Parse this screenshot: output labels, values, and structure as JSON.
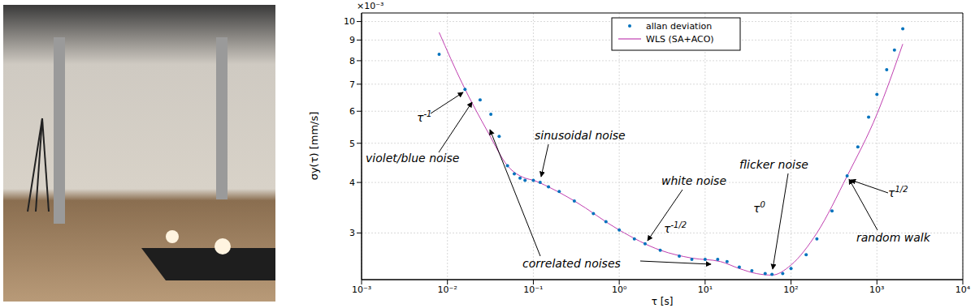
{
  "chart_data": {
    "type": "line",
    "x_label": "τ [s]",
    "y_label": "σy(τ) [mm/s]",
    "y_multiplier": "×10⁻³",
    "log": true,
    "grid": true,
    "legend": "top",
    "xlim": [
      0.001,
      10000
    ],
    "xticks": [
      {
        "value": 0.001,
        "label": "10⁻³"
      },
      {
        "value": 0.01,
        "label": "10⁻²"
      },
      {
        "value": 0.1,
        "label": "10⁻¹"
      },
      {
        "value": 1,
        "label": "10⁰"
      },
      {
        "value": 10,
        "label": "10¹"
      },
      {
        "value": 100,
        "label": "10²"
      },
      {
        "value": 1000,
        "label": "10³"
      },
      {
        "value": 10000,
        "label": "10⁴"
      }
    ],
    "ylim": [
      0.0023,
      0.0105
    ],
    "yticks": [
      {
        "value": 0.003,
        "label": "3"
      },
      {
        "value": 0.004,
        "label": "4"
      },
      {
        "value": 0.005,
        "label": "5"
      },
      {
        "value": 0.006,
        "label": "6"
      },
      {
        "value": 0.007,
        "label": "7"
      },
      {
        "value": 0.008,
        "label": "8"
      },
      {
        "value": 0.009,
        "label": "9"
      },
      {
        "value": 0.01,
        "label": "10"
      }
    ],
    "series": [
      {
        "name": "allan deviation",
        "type": "scatter",
        "marker": "circle",
        "color": "#0072bd",
        "x": [
          0.008,
          0.016,
          0.024,
          0.032,
          0.04,
          0.05,
          0.06,
          0.07,
          0.08,
          0.1,
          0.12,
          0.15,
          0.2,
          0.3,
          0.5,
          0.7,
          1,
          1.5,
          2,
          3,
          5,
          7,
          10,
          14,
          18,
          25,
          35,
          50,
          60,
          80,
          100,
          150,
          200,
          300,
          450,
          600,
          800,
          1000,
          1300,
          1600,
          2000
        ],
        "values": [
          0.0083,
          0.0068,
          0.0064,
          0.0059,
          0.0052,
          0.0044,
          0.0042,
          0.0041,
          0.00405,
          0.00405,
          0.004,
          0.0039,
          0.0038,
          0.0036,
          0.00335,
          0.0032,
          0.00305,
          0.0029,
          0.00282,
          0.00272,
          0.00263,
          0.00258,
          0.00258,
          0.00258,
          0.00255,
          0.00247,
          0.00242,
          0.00238,
          0.00237,
          0.00238,
          0.00245,
          0.00265,
          0.0029,
          0.0034,
          0.00415,
          0.0049,
          0.0058,
          0.0066,
          0.0076,
          0.0085,
          0.0096
        ]
      },
      {
        "name": "WLS (SA+ACO)",
        "type": "line",
        "line_style": "solid",
        "color": "#c03fb0",
        "x": [
          0.008,
          0.015,
          0.03,
          0.05,
          0.08,
          0.1,
          0.15,
          0.3,
          1,
          3,
          7,
          15,
          25,
          40,
          60,
          100,
          200,
          450,
          1000,
          2000
        ],
        "values": [
          0.0094,
          0.007,
          0.0053,
          0.0044,
          0.0041,
          0.00405,
          0.0039,
          0.0036,
          0.00305,
          0.00272,
          0.0026,
          0.00255,
          0.00245,
          0.00238,
          0.00236,
          0.0025,
          0.003,
          0.00415,
          0.0059,
          0.0088
        ]
      }
    ],
    "annotations": [
      {
        "text": "τ",
        "exponent": "-1"
      },
      {
        "text": "violet/blue noise"
      },
      {
        "text": "sinusoidal noise"
      },
      {
        "text": "white noise"
      },
      {
        "text": "τ",
        "exponent": "-1/2"
      },
      {
        "text": "flicker noise"
      },
      {
        "text": "τ",
        "exponent": "0"
      },
      {
        "text": "random walk"
      },
      {
        "text": "τ",
        "exponent": "1/2"
      },
      {
        "text": "correlated noises"
      }
    ]
  }
}
